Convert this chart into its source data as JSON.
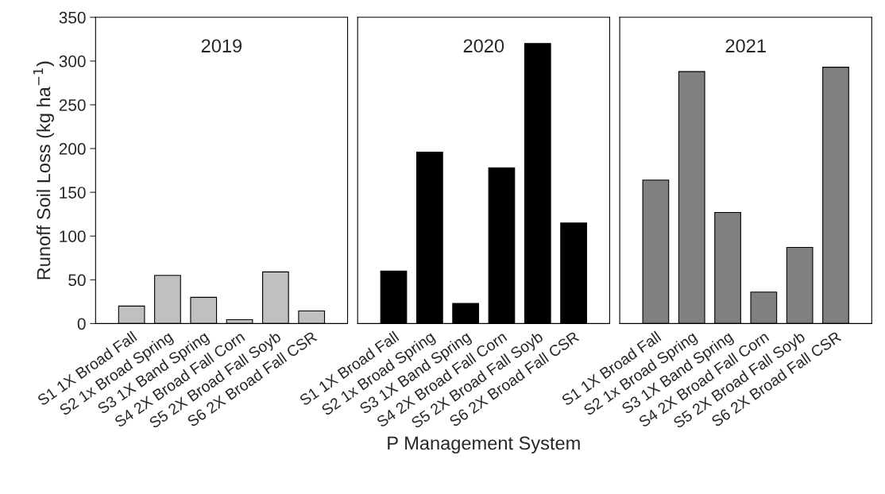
{
  "chart_data": [
    {
      "type": "bar",
      "title": "2019",
      "ylabel": "Runoff Soil Loss (kg ha$^{−1}$)",
      "categories": [
        "S1 1X Broad Fall",
        "S2 1x Broad Spring",
        "S3 1X Band Spring",
        "S4 2X Broad Fall Corn",
        "S5 2X Broad Fall Soyb",
        "S6 2X Broad Fall CSR"
      ],
      "values": [
        20,
        55,
        30,
        4.5,
        59,
        14.5
      ],
      "color": "#c0c0c0",
      "ylim": [
        0,
        350
      ],
      "yticks": [
        0,
        50,
        100,
        150,
        200,
        250,
        300,
        350
      ],
      "grid": false
    },
    {
      "type": "bar",
      "title": "2020",
      "xlabel": "P Management System",
      "categories": [
        "S1 1X Broad Fall",
        "S2 1x Broad Spring",
        "S3 1X Band Spring",
        "S4 2X Broad Fall Corn",
        "S5 2X Broad Fall Soyb",
        "S6 2X Broad Fall CSR"
      ],
      "values": [
        60,
        196,
        23,
        178,
        320,
        115
      ],
      "color": "#000000",
      "ylim": [
        0,
        350
      ],
      "yticks": [
        0,
        50,
        100,
        150,
        200,
        250,
        300,
        350
      ],
      "tick_labels": "x",
      "grid": false
    },
    {
      "type": "bar",
      "title": "2021",
      "categories": [
        "S1 1X Broad Fall",
        "S2 1x Broad Spring",
        "S3 1X Band Spring",
        "S4 2X Broad Fall Corn",
        "S5 2X Broad Fall Soyb",
        "S6 2X Broad Fall CSR"
      ],
      "values": [
        164,
        288,
        127,
        36,
        87,
        293
      ],
      "color": "#808080",
      "ylim": [
        0,
        350
      ],
      "yticks": [
        0,
        50,
        100,
        150,
        200,
        250,
        300,
        350
      ],
      "tick_labels": "x",
      "grid": false
    }
  ]
}
